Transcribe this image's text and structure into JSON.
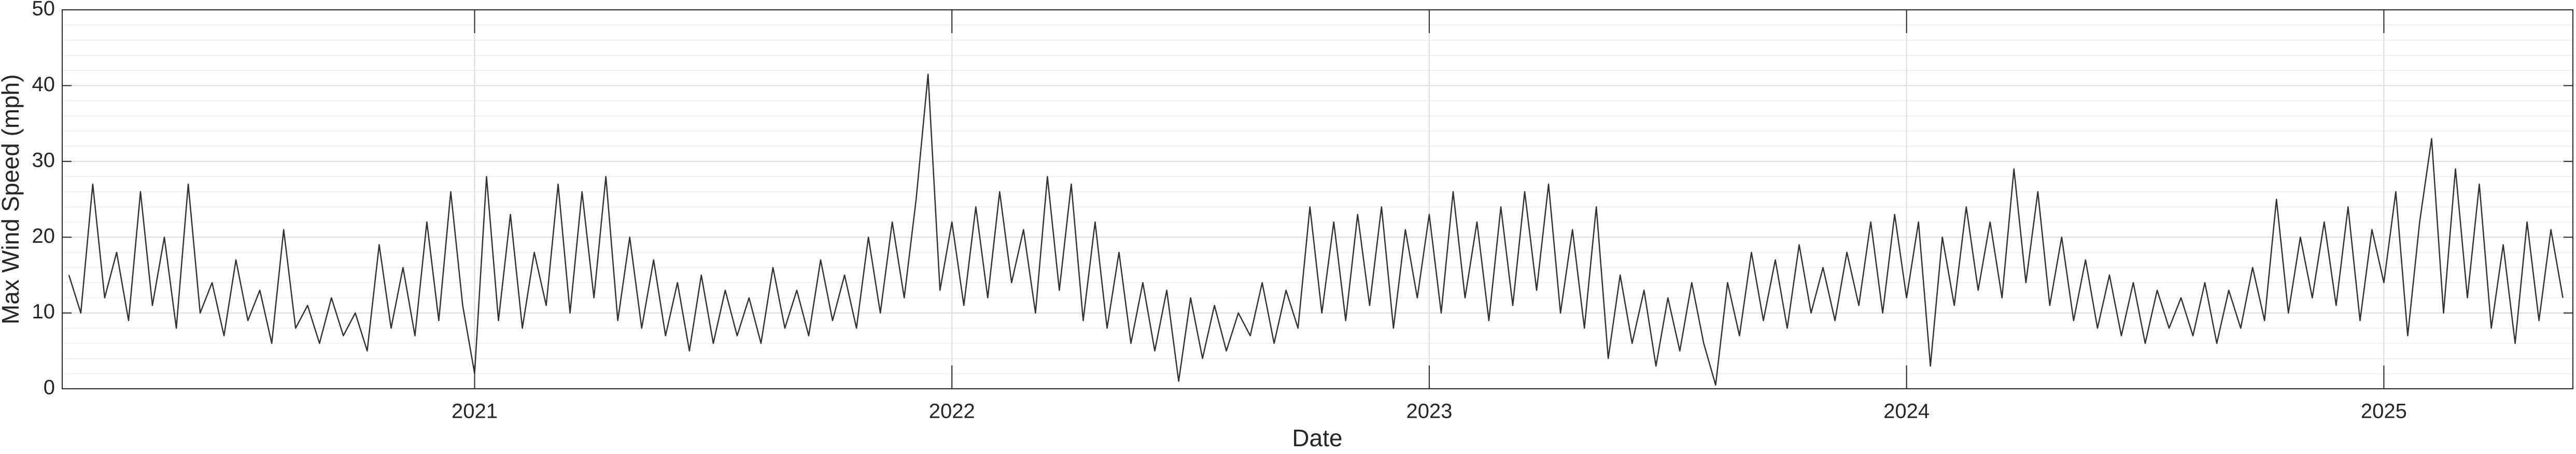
{
  "chart_data": {
    "type": "line",
    "x_label": "Date",
    "y_label": "Max Wind Speed (mph)",
    "xlim": [
      2020.136,
      2025.396
    ],
    "xticks": [
      2021,
      2022,
      2023,
      2024,
      2025
    ],
    "ylim": [
      0,
      50
    ],
    "yticks": [
      0,
      10,
      20,
      30,
      40,
      50
    ],
    "grid": true,
    "minor_grid": true,
    "series": [
      {
        "color": "#333333",
        "x": [
          2020.15,
          2020.175,
          2020.2,
          2020.225,
          2020.25,
          2020.275,
          2020.3,
          2020.325,
          2020.35,
          2020.375,
          2020.4,
          2020.425,
          2020.45,
          2020.475,
          2020.5,
          2020.525,
          2020.55,
          2020.575,
          2020.6,
          2020.625,
          2020.65,
          2020.675,
          2020.7,
          2020.725,
          2020.75,
          2020.775,
          2020.8,
          2020.825,
          2020.85,
          2020.875,
          2020.9,
          2020.925,
          2020.95,
          2020.975,
          2021.0,
          2021.025,
          2021.05,
          2021.075,
          2021.1,
          2021.125,
          2021.15,
          2021.175,
          2021.2,
          2021.225,
          2021.25,
          2021.275,
          2021.3,
          2021.325,
          2021.35,
          2021.375,
          2021.4,
          2021.425,
          2021.45,
          2021.475,
          2021.5,
          2021.525,
          2021.55,
          2021.575,
          2021.6,
          2021.625,
          2021.65,
          2021.675,
          2021.7,
          2021.725,
          2021.75,
          2021.775,
          2021.8,
          2021.825,
          2021.85,
          2021.875,
          2021.9,
          2021.925,
          2021.95,
          2021.975,
          2022.0,
          2022.025,
          2022.05,
          2022.075,
          2022.1,
          2022.125,
          2022.15,
          2022.175,
          2022.2,
          2022.225,
          2022.25,
          2022.275,
          2022.3,
          2022.325,
          2022.35,
          2022.375,
          2022.4,
          2022.425,
          2022.45,
          2022.475,
          2022.5,
          2022.525,
          2022.55,
          2022.575,
          2022.6,
          2022.625,
          2022.65,
          2022.675,
          2022.7,
          2022.725,
          2022.75,
          2022.775,
          2022.8,
          2022.825,
          2022.85,
          2022.875,
          2022.9,
          2022.925,
          2022.95,
          2022.975,
          2023.0,
          2023.025,
          2023.05,
          2023.075,
          2023.1,
          2023.125,
          2023.15,
          2023.175,
          2023.2,
          2023.225,
          2023.25,
          2023.275,
          2023.3,
          2023.325,
          2023.35,
          2023.375,
          2023.4,
          2023.425,
          2023.45,
          2023.475,
          2023.5,
          2023.525,
          2023.55,
          2023.575,
          2023.6,
          2023.625,
          2023.65,
          2023.675,
          2023.7,
          2023.725,
          2023.75,
          2023.775,
          2023.8,
          2023.825,
          2023.85,
          2023.875,
          2023.9,
          2023.925,
          2023.95,
          2023.975,
          2024.0,
          2024.025,
          2024.05,
          2024.075,
          2024.1,
          2024.125,
          2024.15,
          2024.175,
          2024.2,
          2024.225,
          2024.25,
          2024.275,
          2024.3,
          2024.325,
          2024.35,
          2024.375,
          2024.4,
          2024.425,
          2024.45,
          2024.475,
          2024.5,
          2024.525,
          2024.55,
          2024.575,
          2024.6,
          2024.625,
          2024.65,
          2024.675,
          2024.7,
          2024.725,
          2024.75,
          2024.775,
          2024.8,
          2024.825,
          2024.85,
          2024.875,
          2024.9,
          2024.925,
          2024.95,
          2024.975,
          2025.0,
          2025.025,
          2025.05,
          2025.075,
          2025.1,
          2025.125,
          2025.15,
          2025.175,
          2025.2,
          2025.225,
          2025.25,
          2025.275,
          2025.3,
          2025.325,
          2025.35,
          2025.375
        ],
        "values": [
          15,
          10,
          27,
          12,
          18,
          9,
          26,
          11,
          20,
          8,
          27,
          10,
          14,
          7,
          17,
          9,
          13,
          6,
          21,
          8,
          11,
          6,
          12,
          7,
          10,
          5,
          19,
          8,
          16,
          7,
          22,
          9,
          26,
          11,
          2,
          28,
          9,
          23,
          8,
          18,
          11,
          27,
          10,
          26,
          12,
          28,
          9,
          20,
          8,
          17,
          7,
          14,
          5,
          15,
          6,
          13,
          7,
          12,
          6,
          16,
          8,
          13,
          7,
          17,
          9,
          15,
          8,
          20,
          10,
          22,
          12,
          25,
          41.5,
          13,
          22,
          11,
          24,
          12,
          26,
          14,
          21,
          10,
          28,
          13,
          27,
          9,
          22,
          8,
          18,
          6,
          14,
          5,
          13,
          1,
          12,
          4,
          11,
          5,
          10,
          7,
          14,
          6,
          13,
          8,
          24,
          10,
          22,
          9,
          23,
          11,
          24,
          8,
          21,
          12,
          23,
          10,
          26,
          12,
          22,
          9,
          24,
          11,
          26,
          13,
          27,
          10,
          21,
          8,
          24,
          4,
          15,
          6,
          13,
          3,
          12,
          5,
          14,
          6,
          0.5,
          14,
          7,
          18,
          9,
          17,
          8,
          19,
          10,
          16,
          9,
          18,
          11,
          22,
          10,
          23,
          12,
          22,
          3,
          20,
          11,
          24,
          13,
          22,
          12,
          29,
          14,
          26,
          11,
          20,
          9,
          17,
          8,
          15,
          7,
          14,
          6,
          13,
          8,
          12,
          7,
          14,
          6,
          13,
          8,
          16,
          9,
          25,
          10,
          20,
          12,
          22,
          11,
          24,
          9,
          21,
          14,
          26,
          7,
          22,
          33,
          10,
          29,
          12,
          27,
          8,
          19,
          6,
          22,
          9,
          21,
          12
        ]
      }
    ]
  }
}
